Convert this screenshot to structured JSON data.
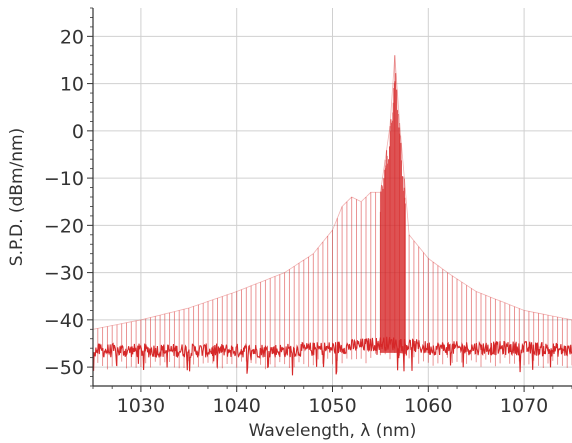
{
  "chart_data": {
    "type": "line",
    "title": "",
    "xlabel": "Wavelength, λ (nm)",
    "ylabel": "S.P.D. (dBm/nm)",
    "xlim": [
      1025,
      1075
    ],
    "ylim": [
      -54,
      26
    ],
    "x_ticks": [
      1030,
      1040,
      1050,
      1060,
      1070
    ],
    "x_tick_labels": [
      "1030",
      "1040",
      "1050",
      "1060",
      "1070"
    ],
    "y_ticks": [
      -50,
      -40,
      -30,
      -20,
      -10,
      0,
      10,
      20
    ],
    "y_tick_labels": [
      "−50",
      "−40",
      "−30",
      "−20",
      "−10",
      "0",
      "10",
      "20"
    ],
    "grid": true,
    "legend": "none",
    "line_color": "#d62728",
    "mode_spacing_nm": 0.5,
    "series": [
      {
        "role": "spectral envelope (upper peaks)",
        "x": [
          1025,
          1030,
          1035,
          1040,
          1045,
          1048,
          1050,
          1051,
          1052,
          1053,
          1054,
          1055,
          1055.8,
          1056.2,
          1056.5,
          1056.9,
          1057.2,
          1058,
          1060,
          1062,
          1065,
          1070,
          1075
        ],
        "y": [
          -42,
          -40,
          -37.5,
          -34,
          -30,
          -26,
          -21,
          -16,
          -14,
          -15,
          -13,
          -13,
          -2,
          4,
          16,
          4,
          -3,
          -22,
          -27,
          -30,
          -34,
          -38,
          -40
        ]
      },
      {
        "role": "noise floor (lower trace)",
        "x": [
          1025,
          1030,
          1035,
          1040,
          1045,
          1050,
          1055,
          1056,
          1057,
          1060,
          1065,
          1070,
          1075
        ],
        "y": [
          -46.5,
          -46.5,
          -46.5,
          -46.5,
          -46.5,
          -46,
          -45,
          -45,
          -45,
          -46,
          -46,
          -46,
          -46.5
        ]
      }
    ]
  }
}
